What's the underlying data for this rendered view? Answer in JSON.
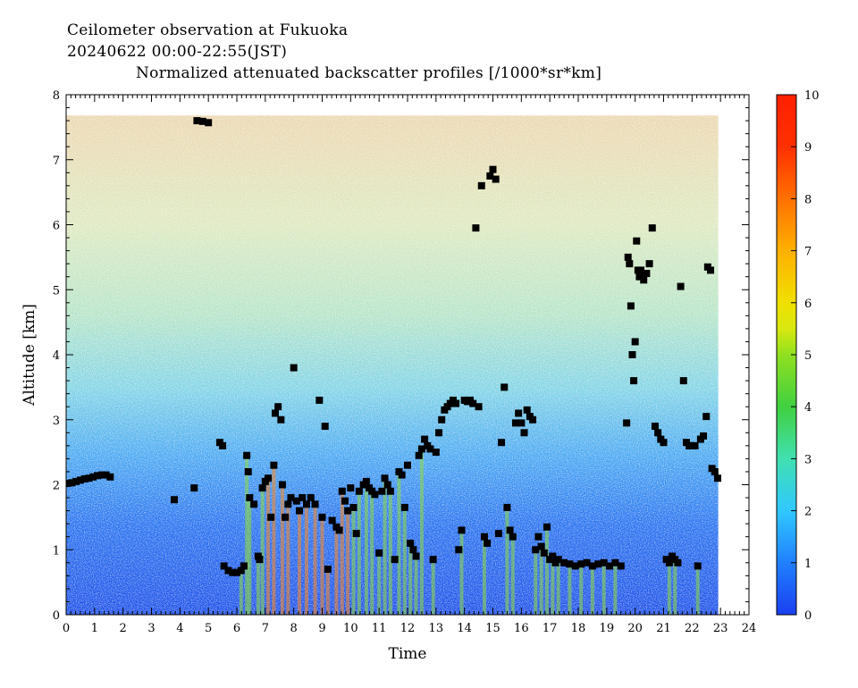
{
  "chart_data": {
    "type": "heatmap",
    "title_lines": [
      "Ceilometer observation at Fukuoka",
      "20240622  00:00-22:55(JST)",
      "Normalized attenuated backscatter profiles [/1000*sr*km]"
    ],
    "xlabel": "Time",
    "ylabel": "Altitude [km]",
    "xlim": [
      0,
      24
    ],
    "ylim": [
      0,
      8
    ],
    "x_ticks": [
      "0",
      "1",
      "2",
      "3",
      "4",
      "5",
      "6",
      "7",
      "8",
      "9",
      "10",
      "11",
      "12",
      "13",
      "14",
      "15",
      "16",
      "17",
      "18",
      "19",
      "20",
      "21",
      "22",
      "23",
      "24"
    ],
    "y_ticks": [
      "0",
      "1",
      "2",
      "3",
      "4",
      "5",
      "6",
      "7",
      "8"
    ],
    "colorbar": {
      "range": [
        0,
        10
      ],
      "ticks": [
        "0",
        "1",
        "2",
        "3",
        "4",
        "5",
        "6",
        "7",
        "8",
        "9",
        "10"
      ],
      "stops": [
        "#1a3ff0",
        "#2080ff",
        "#30c8ff",
        "#40e0b0",
        "#40d040",
        "#90e020",
        "#f0e000",
        "#ffb000",
        "#ff7000",
        "#ff3000",
        "#ff2000"
      ]
    },
    "data_coverage": {
      "x_end": 22.92,
      "y_top": 7.68
    },
    "layer_colors": {
      "surface": "#1e50e8",
      "lower": "#3a8cf0",
      "middle": "#7fd3e6",
      "upper": "#cfe9b8",
      "noise_top": "#e8c090"
    },
    "cloud_base_points": [
      [
        0.05,
        2.02
      ],
      [
        0.2,
        2.03
      ],
      [
        0.35,
        2.05
      ],
      [
        0.5,
        2.07
      ],
      [
        0.65,
        2.09
      ],
      [
        0.8,
        2.1
      ],
      [
        0.95,
        2.12
      ],
      [
        1.1,
        2.14
      ],
      [
        1.25,
        2.15
      ],
      [
        1.4,
        2.15
      ],
      [
        1.55,
        2.12
      ],
      [
        3.8,
        1.77
      ],
      [
        4.5,
        1.95
      ],
      [
        4.6,
        7.6
      ],
      [
        4.8,
        7.59
      ],
      [
        5.0,
        7.57
      ],
      [
        5.4,
        2.65
      ],
      [
        5.5,
        2.6
      ],
      [
        5.55,
        0.75
      ],
      [
        5.7,
        0.68
      ],
      [
        5.85,
        0.65
      ],
      [
        6.0,
        0.65
      ],
      [
        6.15,
        0.68
      ],
      [
        6.25,
        0.75
      ],
      [
        6.35,
        2.45
      ],
      [
        6.4,
        2.2
      ],
      [
        6.45,
        1.8
      ],
      [
        6.6,
        1.7
      ],
      [
        6.75,
        0.9
      ],
      [
        6.8,
        0.85
      ],
      [
        6.9,
        1.95
      ],
      [
        7.0,
        2.05
      ],
      [
        7.1,
        2.1
      ],
      [
        7.2,
        1.5
      ],
      [
        7.3,
        2.3
      ],
      [
        7.35,
        3.1
      ],
      [
        7.45,
        3.2
      ],
      [
        7.55,
        3.0
      ],
      [
        7.6,
        2.0
      ],
      [
        7.7,
        1.5
      ],
      [
        7.8,
        1.7
      ],
      [
        7.9,
        1.8
      ],
      [
        8.0,
        3.8
      ],
      [
        8.1,
        1.75
      ],
      [
        8.2,
        1.6
      ],
      [
        8.3,
        1.8
      ],
      [
        8.45,
        1.7
      ],
      [
        8.6,
        1.8
      ],
      [
        8.75,
        1.7
      ],
      [
        8.9,
        3.3
      ],
      [
        9.0,
        1.5
      ],
      [
        9.1,
        2.9
      ],
      [
        9.2,
        0.7
      ],
      [
        9.35,
        1.45
      ],
      [
        9.5,
        1.35
      ],
      [
        9.6,
        1.3
      ],
      [
        9.7,
        1.9
      ],
      [
        9.8,
        1.75
      ],
      [
        9.9,
        1.6
      ],
      [
        10.0,
        1.95
      ],
      [
        10.1,
        1.65
      ],
      [
        10.2,
        1.25
      ],
      [
        10.3,
        1.9
      ],
      [
        10.45,
        2.0
      ],
      [
        10.55,
        2.05
      ],
      [
        10.65,
        1.95
      ],
      [
        10.75,
        1.9
      ],
      [
        10.85,
        1.85
      ],
      [
        11.0,
        0.95
      ],
      [
        11.1,
        1.9
      ],
      [
        11.2,
        2.1
      ],
      [
        11.3,
        2.0
      ],
      [
        11.4,
        1.9
      ],
      [
        11.55,
        0.85
      ],
      [
        11.7,
        2.2
      ],
      [
        11.8,
        2.15
      ],
      [
        11.9,
        1.65
      ],
      [
        12.0,
        2.3
      ],
      [
        12.1,
        1.1
      ],
      [
        12.2,
        1.0
      ],
      [
        12.3,
        0.9
      ],
      [
        12.4,
        2.45
      ],
      [
        12.5,
        2.55
      ],
      [
        12.6,
        2.7
      ],
      [
        12.7,
        2.6
      ],
      [
        12.8,
        2.55
      ],
      [
        12.9,
        0.85
      ],
      [
        13.0,
        2.5
      ],
      [
        13.1,
        2.8
      ],
      [
        13.2,
        3.0
      ],
      [
        13.3,
        3.15
      ],
      [
        13.4,
        3.2
      ],
      [
        13.5,
        3.25
      ],
      [
        13.6,
        3.3
      ],
      [
        13.7,
        3.25
      ],
      [
        13.8,
        1.0
      ],
      [
        13.9,
        1.3
      ],
      [
        14.0,
        3.3
      ],
      [
        14.1,
        3.28
      ],
      [
        14.2,
        3.3
      ],
      [
        14.3,
        3.25
      ],
      [
        14.4,
        5.95
      ],
      [
        14.5,
        3.2
      ],
      [
        14.6,
        6.6
      ],
      [
        14.7,
        1.2
      ],
      [
        14.8,
        1.1
      ],
      [
        14.9,
        6.75
      ],
      [
        15.0,
        6.85
      ],
      [
        15.1,
        6.7
      ],
      [
        15.2,
        1.25
      ],
      [
        15.3,
        2.65
      ],
      [
        15.4,
        3.5
      ],
      [
        15.5,
        1.65
      ],
      [
        15.6,
        1.3
      ],
      [
        15.7,
        1.2
      ],
      [
        15.8,
        2.95
      ],
      [
        15.9,
        3.1
      ],
      [
        16.0,
        2.95
      ],
      [
        16.1,
        2.8
      ],
      [
        16.2,
        3.15
      ],
      [
        16.3,
        3.05
      ],
      [
        16.4,
        3.0
      ],
      [
        16.5,
        1.0
      ],
      [
        16.6,
        1.2
      ],
      [
        16.7,
        1.05
      ],
      [
        16.8,
        0.95
      ],
      [
        16.9,
        1.35
      ],
      [
        17.0,
        0.85
      ],
      [
        17.1,
        0.9
      ],
      [
        17.2,
        0.8
      ],
      [
        17.3,
        0.85
      ],
      [
        17.5,
        0.8
      ],
      [
        17.7,
        0.78
      ],
      [
        17.9,
        0.75
      ],
      [
        18.1,
        0.78
      ],
      [
        18.3,
        0.8
      ],
      [
        18.5,
        0.75
      ],
      [
        18.7,
        0.78
      ],
      [
        18.9,
        0.8
      ],
      [
        19.1,
        0.75
      ],
      [
        19.3,
        0.8
      ],
      [
        19.5,
        0.75
      ],
      [
        19.7,
        2.95
      ],
      [
        19.75,
        5.5
      ],
      [
        19.8,
        5.4
      ],
      [
        19.85,
        4.75
      ],
      [
        19.9,
        4.0
      ],
      [
        19.95,
        3.6
      ],
      [
        20.0,
        4.2
      ],
      [
        20.05,
        5.75
      ],
      [
        20.1,
        5.3
      ],
      [
        20.15,
        5.2
      ],
      [
        20.2,
        5.3
      ],
      [
        20.3,
        5.15
      ],
      [
        20.4,
        5.25
      ],
      [
        20.5,
        5.4
      ],
      [
        20.6,
        5.95
      ],
      [
        20.7,
        2.9
      ],
      [
        20.8,
        2.8
      ],
      [
        20.9,
        2.7
      ],
      [
        21.0,
        2.65
      ],
      [
        21.1,
        0.85
      ],
      [
        21.2,
        0.8
      ],
      [
        21.3,
        0.9
      ],
      [
        21.4,
        0.85
      ],
      [
        21.5,
        0.8
      ],
      [
        21.6,
        5.05
      ],
      [
        21.7,
        3.6
      ],
      [
        21.8,
        2.65
      ],
      [
        21.9,
        2.6
      ],
      [
        22.0,
        2.6
      ],
      [
        22.1,
        2.6
      ],
      [
        22.2,
        0.75
      ],
      [
        22.3,
        2.7
      ],
      [
        22.4,
        2.75
      ],
      [
        22.5,
        3.05
      ],
      [
        22.55,
        5.35
      ],
      [
        22.65,
        5.3
      ],
      [
        22.7,
        2.25
      ],
      [
        22.8,
        2.2
      ],
      [
        22.9,
        2.1
      ]
    ]
  }
}
